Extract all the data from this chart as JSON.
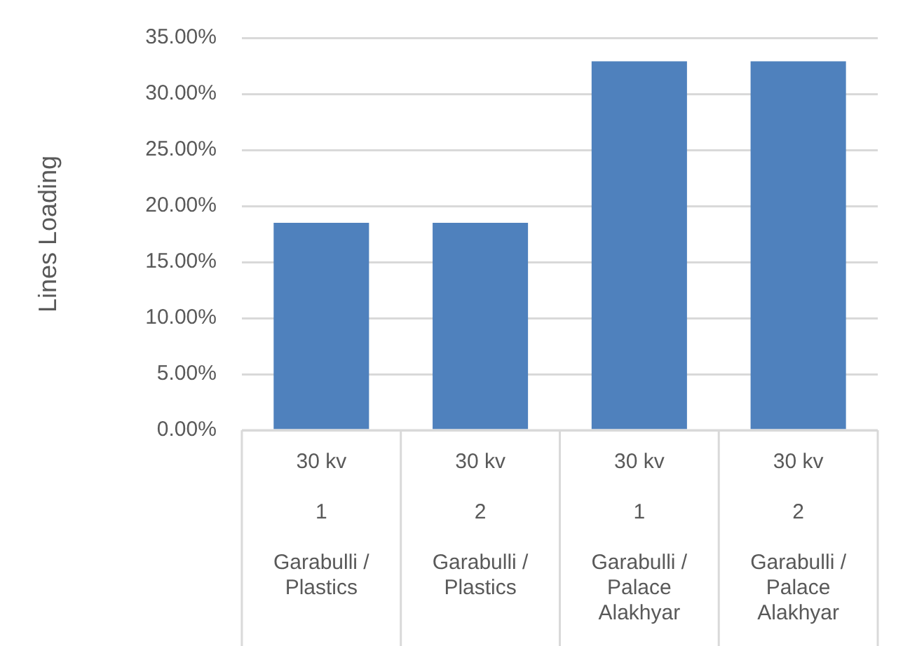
{
  "chart_data": {
    "type": "bar",
    "ylabel": "Lines Loading",
    "categories": [
      "30 kv\n1\nGarabulli / Plastics",
      "30 kv\n2\nGarabulli / Plastics",
      "30 kv\n1\nGarabulli / Palace Alakhyar",
      "30 kv\n2\nGarabulli / Palace Alakhyar"
    ],
    "values": [
      18.5,
      18.5,
      32.9,
      32.9
    ],
    "color": "#4f81bd",
    "ylim": [
      0,
      35
    ],
    "yticks": [
      {
        "value": 0,
        "label": "0.00%"
      },
      {
        "value": 5,
        "label": "5.00%"
      },
      {
        "value": 10,
        "label": "10.00%"
      },
      {
        "value": 15,
        "label": "15.00%"
      },
      {
        "value": 20,
        "label": "20.00%"
      },
      {
        "value": 25,
        "label": "25.00%"
      },
      {
        "value": 30,
        "label": "30.00%"
      },
      {
        "value": 35,
        "label": "35.00%"
      }
    ],
    "grid": "y",
    "legend": false
  }
}
